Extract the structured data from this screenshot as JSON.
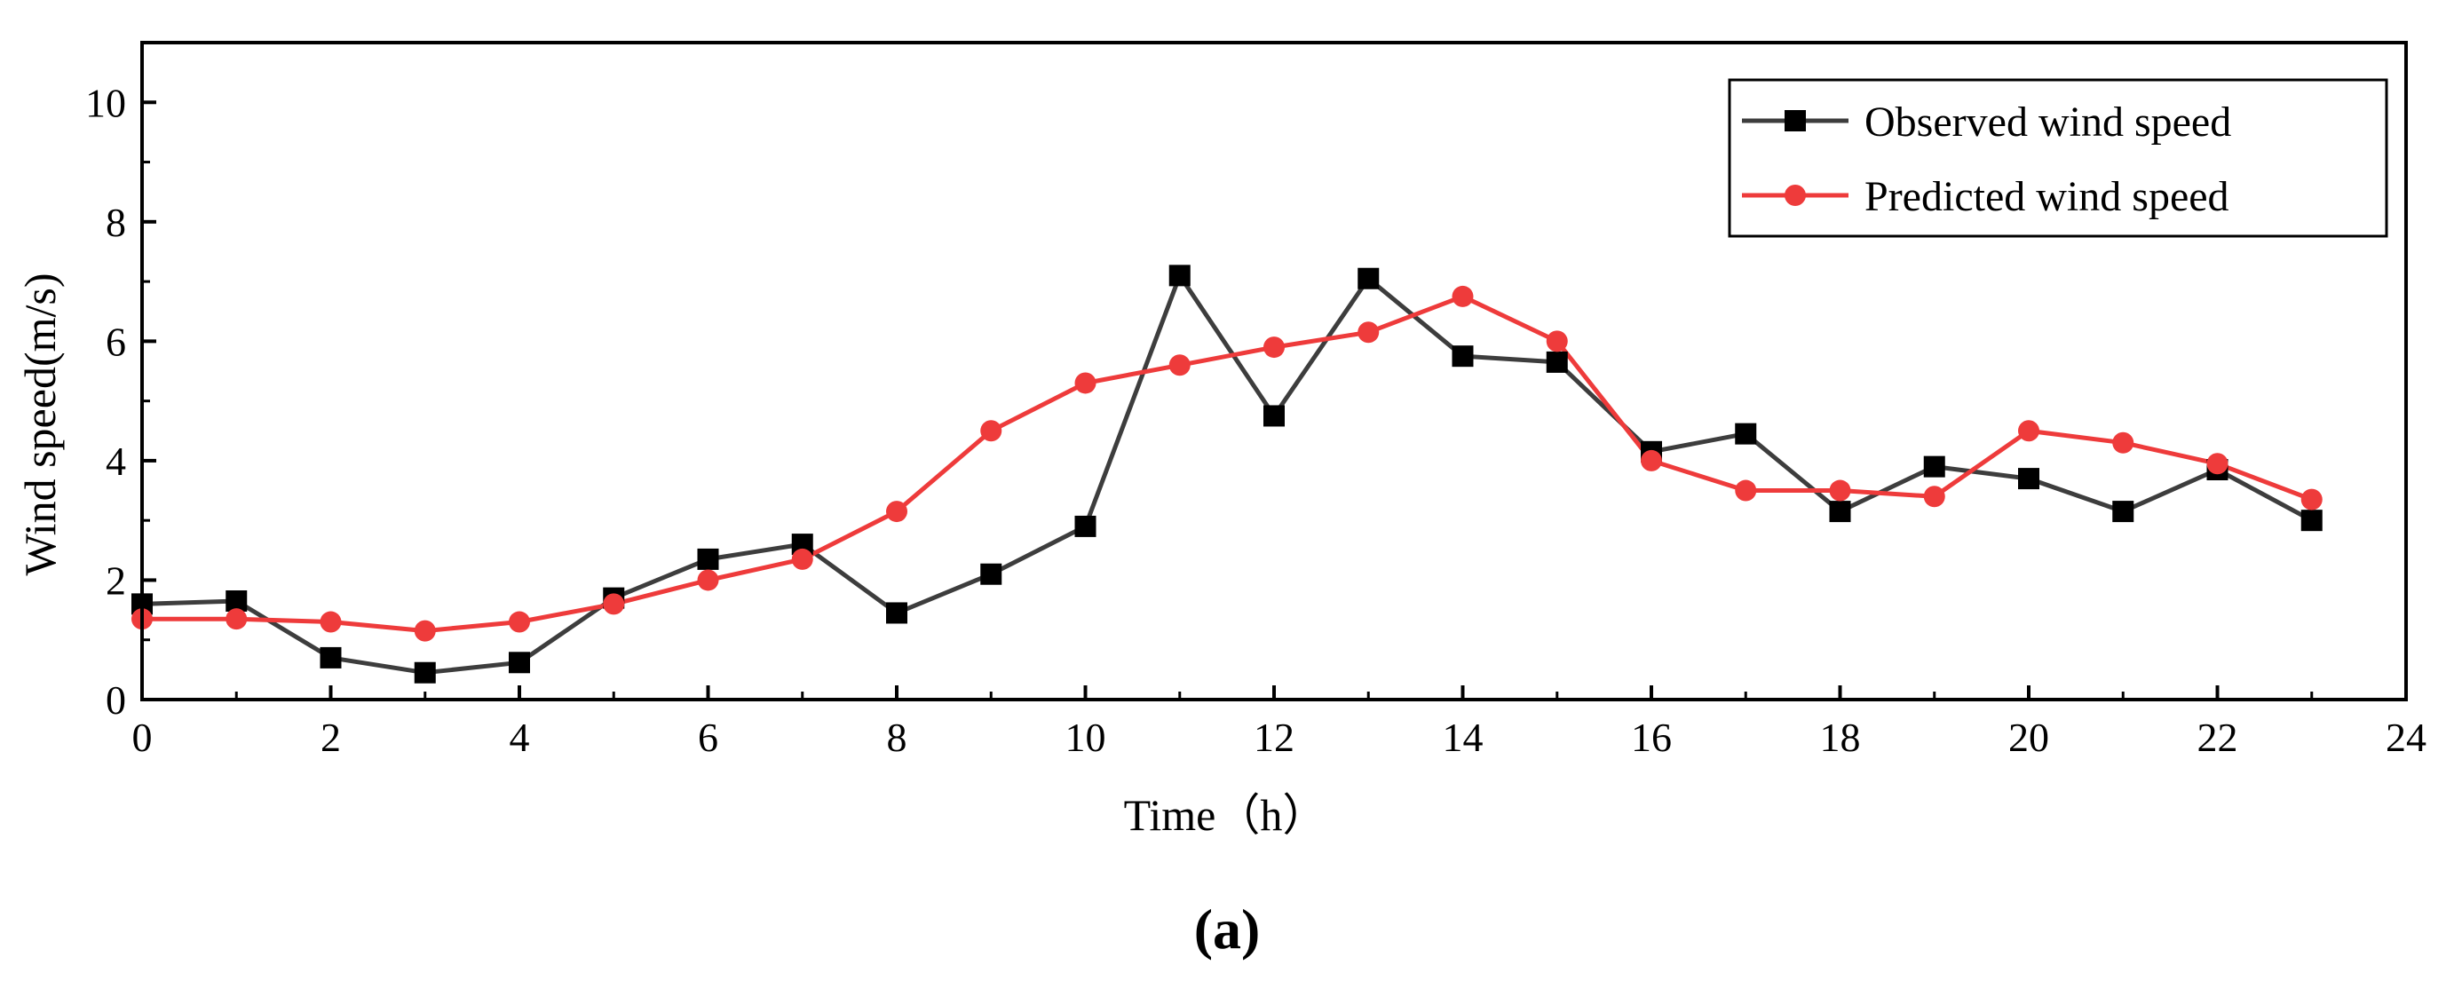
{
  "chart_data": {
    "type": "line",
    "title": "",
    "xlabel": "Time（h）",
    "ylabel": "Wind speed(m/s)",
    "xlim": [
      0,
      24
    ],
    "ylim": [
      0,
      11
    ],
    "x_ticks": [
      0,
      2,
      4,
      6,
      8,
      10,
      12,
      14,
      16,
      18,
      20,
      22,
      24
    ],
    "y_ticks": [
      0,
      2,
      4,
      6,
      8,
      10
    ],
    "grid": false,
    "legend_position": "top-right",
    "x": [
      0,
      1,
      2,
      3,
      4,
      5,
      6,
      7,
      8,
      9,
      10,
      11,
      12,
      13,
      14,
      15,
      16,
      17,
      18,
      19,
      20,
      21,
      22,
      23
    ],
    "series": [
      {
        "name": "Observed wind speed",
        "color": "#3d3d3d",
        "marker": "square",
        "values": [
          1.6,
          1.65,
          0.7,
          0.45,
          0.62,
          1.7,
          2.35,
          2.6,
          1.45,
          2.1,
          2.9,
          7.1,
          4.75,
          7.05,
          5.75,
          5.65,
          4.15,
          4.45,
          3.15,
          3.9,
          3.7,
          3.15,
          3.85,
          3.0
        ]
      },
      {
        "name": "Predicted wind speed",
        "color": "#ee3b3b",
        "marker": "circle",
        "values": [
          1.35,
          1.35,
          1.3,
          1.15,
          1.3,
          1.6,
          2.0,
          2.35,
          3.15,
          4.5,
          5.3,
          5.6,
          5.9,
          6.15,
          6.75,
          6.0,
          4.0,
          3.5,
          3.5,
          3.4,
          4.5,
          4.3,
          3.95,
          3.35
        ]
      }
    ]
  },
  "caption": "(a)"
}
